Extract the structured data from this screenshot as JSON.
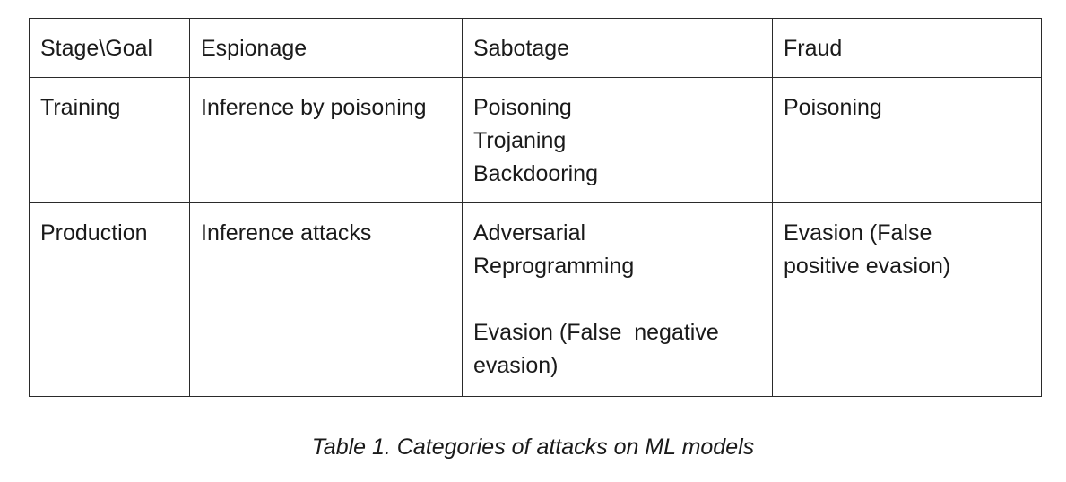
{
  "table": {
    "header": [
      "Stage\\Goal",
      "Espionage",
      "Sabotage",
      "Fraud"
    ],
    "rows": [
      {
        "stage": "Training",
        "espionage": [
          "Inference by poisoning"
        ],
        "sabotage": [
          "Poisoning",
          "Trojaning",
          "Backdooring"
        ],
        "fraud": [
          "Poisoning"
        ]
      },
      {
        "stage": "Production",
        "espionage": [
          "Inference attacks"
        ],
        "sabotage": [
          "Adversarial",
          "Reprogramming",
          "",
          "Evasion (False  negative",
          "evasion)"
        ],
        "fraud": [
          "Evasion (False",
          "positive evasion)"
        ]
      }
    ]
  },
  "caption": "Table 1. Categories of attacks on ML models"
}
